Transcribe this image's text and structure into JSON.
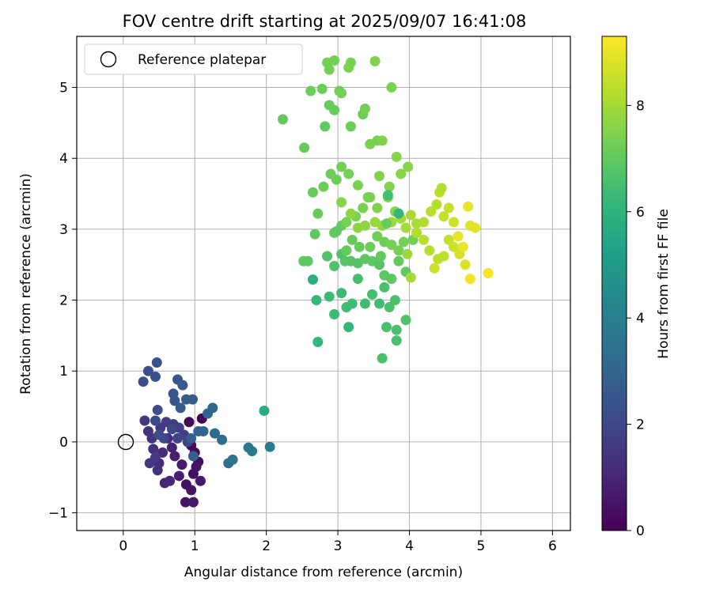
{
  "chart_data": {
    "type": "scatter",
    "title": "FOV centre drift starting at 2025/09/07 16:41:08",
    "xlabel": "Angular distance from reference (arcmin)",
    "ylabel": "Rotation from reference (arcmin)",
    "xlim": [
      -0.65,
      6.25
    ],
    "ylim": [
      -1.25,
      5.72
    ],
    "xticks": [
      0,
      1,
      2,
      3,
      4,
      5,
      6
    ],
    "yticks": [
      -1,
      0,
      1,
      2,
      3,
      4,
      5
    ],
    "grid": true,
    "legend": {
      "position": "top-left",
      "entries": [
        {
          "label": "Reference platepar",
          "marker": "open-circle",
          "x": 0,
          "y": 0
        }
      ]
    },
    "colorbar": {
      "label": "Hours from first FF file",
      "range": [
        0,
        9.3
      ],
      "ticks": [
        0,
        2,
        4,
        6,
        8
      ],
      "colormap": "viridis"
    },
    "colormap_stops": [
      "#440154",
      "#482878",
      "#3e4989",
      "#31688e",
      "#26828e",
      "#1f9e89",
      "#35b779",
      "#6ece58",
      "#b5de2b",
      "#fde725"
    ],
    "points": [
      [
        1.1,
        0.33,
        0.1
      ],
      [
        0.92,
        0.28,
        0.2
      ],
      [
        0.95,
        -0.05,
        0.2
      ],
      [
        1.0,
        -0.15,
        0.3
      ],
      [
        1.05,
        -0.28,
        0.3
      ],
      [
        0.98,
        -0.45,
        0.4
      ],
      [
        0.88,
        -0.6,
        0.4
      ],
      [
        0.95,
        -0.68,
        0.5
      ],
      [
        0.87,
        -0.85,
        0.5
      ],
      [
        0.98,
        -0.85,
        0.6
      ],
      [
        1.02,
        -0.35,
        0.5
      ],
      [
        1.08,
        -0.55,
        0.6
      ],
      [
        0.82,
        -0.32,
        0.7
      ],
      [
        0.78,
        -0.48,
        0.8
      ],
      [
        0.72,
        -0.2,
        0.8
      ],
      [
        0.68,
        -0.08,
        0.9
      ],
      [
        0.65,
        -0.55,
        1.0
      ],
      [
        0.58,
        -0.58,
        1.0
      ],
      [
        0.62,
        0.05,
        1.1
      ],
      [
        0.55,
        -0.15,
        1.1
      ],
      [
        0.5,
        -0.3,
        1.2
      ],
      [
        0.48,
        -0.4,
        1.3
      ],
      [
        0.42,
        -0.1,
        1.3
      ],
      [
        0.4,
        0.05,
        1.4
      ],
      [
        0.35,
        0.15,
        1.4
      ],
      [
        0.3,
        0.3,
        1.5
      ],
      [
        0.37,
        -0.3,
        1.5
      ],
      [
        0.45,
        -0.22,
        1.6
      ],
      [
        0.52,
        0.2,
        1.6
      ],
      [
        0.6,
        0.28,
        1.7
      ],
      [
        0.7,
        0.25,
        1.7
      ],
      [
        0.78,
        0.2,
        1.8
      ],
      [
        0.85,
        0.1,
        1.8
      ],
      [
        0.9,
        0.0,
        1.9
      ],
      [
        0.76,
        0.05,
        1.9
      ],
      [
        0.68,
        0.18,
        2.0
      ],
      [
        0.57,
        0.05,
        2.0
      ],
      [
        0.5,
        0.1,
        2.1
      ],
      [
        0.45,
        0.3,
        2.1
      ],
      [
        0.48,
        0.45,
        2.2
      ],
      [
        0.28,
        0.85,
        2.2
      ],
      [
        0.35,
        1.0,
        2.3
      ],
      [
        0.45,
        0.92,
        2.3
      ],
      [
        0.47,
        1.12,
        2.4
      ],
      [
        0.7,
        0.68,
        2.4
      ],
      [
        0.72,
        0.58,
        2.5
      ],
      [
        0.76,
        0.88,
        2.5
      ],
      [
        0.83,
        0.8,
        2.6
      ],
      [
        0.8,
        0.48,
        2.6
      ],
      [
        0.88,
        0.6,
        2.7
      ],
      [
        0.97,
        0.6,
        2.7
      ],
      [
        0.98,
        -0.2,
        2.9
      ],
      [
        0.95,
        0.05,
        2.8
      ],
      [
        1.05,
        0.15,
        2.9
      ],
      [
        1.12,
        0.15,
        3.0
      ],
      [
        1.18,
        0.4,
        3.0
      ],
      [
        1.25,
        0.48,
        3.1
      ],
      [
        1.28,
        0.12,
        3.2
      ],
      [
        1.38,
        0.03,
        3.3
      ],
      [
        1.47,
        -0.3,
        3.4
      ],
      [
        1.53,
        -0.25,
        3.5
      ],
      [
        1.75,
        -0.08,
        3.7
      ],
      [
        1.8,
        -0.13,
        3.8
      ],
      [
        2.05,
        -0.07,
        4.0
      ],
      [
        1.97,
        0.44,
        5.7
      ],
      [
        2.65,
        2.29,
        5.8
      ],
      [
        2.72,
        1.41,
        6.1
      ],
      [
        3.15,
        1.62,
        6.2
      ],
      [
        2.7,
        2.0,
        6.2
      ],
      [
        2.88,
        2.05,
        6.3
      ],
      [
        2.95,
        1.8,
        6.3
      ],
      [
        3.05,
        2.1,
        6.3
      ],
      [
        3.12,
        1.9,
        6.4
      ],
      [
        3.2,
        1.95,
        6.4
      ],
      [
        3.28,
        2.3,
        6.5
      ],
      [
        3.38,
        1.95,
        6.4
      ],
      [
        3.48,
        2.08,
        6.5
      ],
      [
        3.58,
        1.95,
        6.4
      ],
      [
        3.65,
        2.18,
        6.6
      ],
      [
        3.72,
        1.9,
        6.6
      ],
      [
        3.8,
        2.0,
        6.6
      ],
      [
        3.68,
        1.62,
        6.6
      ],
      [
        3.82,
        1.58,
        6.6
      ],
      [
        3.82,
        1.43,
        6.6
      ],
      [
        3.62,
        1.18,
        6.6
      ],
      [
        3.95,
        1.72,
        6.7
      ],
      [
        2.85,
        2.62,
        6.7
      ],
      [
        2.95,
        2.48,
        6.7
      ],
      [
        3.05,
        2.65,
        6.7
      ],
      [
        3.1,
        2.55,
        6.8
      ],
      [
        3.18,
        2.55,
        6.8
      ],
      [
        3.28,
        2.52,
        6.8
      ],
      [
        3.38,
        2.58,
        6.9
      ],
      [
        3.48,
        2.55,
        6.9
      ],
      [
        3.58,
        2.5,
        6.8
      ],
      [
        3.65,
        2.35,
        6.9
      ],
      [
        3.75,
        2.3,
        6.9
      ],
      [
        3.85,
        2.55,
        7.0
      ],
      [
        3.95,
        2.4,
        7.0
      ],
      [
        2.52,
        2.55,
        6.9
      ],
      [
        2.58,
        2.55,
        6.9
      ],
      [
        2.68,
        2.93,
        6.9
      ],
      [
        2.95,
        2.95,
        7.0
      ],
      [
        3.05,
        3.05,
        7.0
      ],
      [
        3.12,
        2.7,
        7.1
      ],
      [
        3.2,
        2.85,
        7.1
      ],
      [
        3.3,
        2.75,
        7.1
      ],
      [
        3.45,
        2.75,
        7.2
      ],
      [
        3.55,
        2.9,
        7.2
      ],
      [
        3.65,
        2.82,
        7.2
      ],
      [
        3.75,
        2.78,
        7.3
      ],
      [
        3.85,
        2.7,
        7.3
      ],
      [
        3.92,
        2.82,
        7.3
      ],
      [
        4.05,
        2.85,
        7.3
      ],
      [
        3.12,
        3.1,
        7.4
      ],
      [
        3.25,
        3.18,
        7.4
      ],
      [
        3.35,
        3.3,
        7.4
      ],
      [
        3.45,
        3.45,
        7.5
      ],
      [
        3.55,
        3.3,
        7.5
      ],
      [
        3.7,
        3.45,
        7.5
      ],
      [
        3.8,
        3.25,
        7.6
      ],
      [
        2.65,
        3.52,
        7.1
      ],
      [
        2.72,
        3.22,
        7.1
      ],
      [
        2.8,
        3.6,
        7.2
      ],
      [
        2.9,
        3.78,
        7.2
      ],
      [
        2.98,
        3.7,
        7.2
      ],
      [
        3.05,
        3.88,
        7.3
      ],
      [
        3.15,
        3.78,
        7.3
      ],
      [
        3.28,
        3.62,
        7.4
      ],
      [
        3.42,
        3.45,
        7.4
      ],
      [
        3.58,
        3.75,
        7.5
      ],
      [
        3.72,
        3.6,
        7.5
      ],
      [
        3.88,
        3.78,
        7.6
      ],
      [
        3.98,
        3.88,
        7.6
      ],
      [
        3.82,
        4.02,
        7.6
      ],
      [
        2.53,
        4.15,
        7.1
      ],
      [
        2.23,
        4.55,
        7.0
      ],
      [
        2.82,
        4.45,
        7.0
      ],
      [
        2.88,
        4.75,
        7.1
      ],
      [
        2.95,
        4.68,
        7.1
      ],
      [
        3.18,
        4.45,
        7.2
      ],
      [
        3.35,
        4.62,
        7.2
      ],
      [
        3.38,
        4.7,
        7.3
      ],
      [
        3.45,
        4.2,
        7.4
      ],
      [
        3.55,
        4.25,
        7.4
      ],
      [
        3.62,
        4.25,
        7.5
      ],
      [
        2.62,
        4.95,
        7.2
      ],
      [
        2.78,
        4.98,
        7.2
      ],
      [
        3.02,
        4.95,
        7.3
      ],
      [
        3.05,
        4.92,
        7.3
      ],
      [
        3.75,
        5.0,
        7.4
      ],
      [
        2.85,
        5.35,
        7.3
      ],
      [
        2.88,
        5.25,
        7.3
      ],
      [
        2.95,
        5.38,
        7.3
      ],
      [
        3.15,
        5.28,
        7.4
      ],
      [
        3.18,
        5.35,
        7.4
      ],
      [
        3.52,
        5.37,
        7.5
      ],
      [
        3.05,
        3.38,
        7.6
      ],
      [
        3.18,
        3.22,
        7.7
      ],
      [
        3.28,
        3.02,
        7.7
      ],
      [
        3.38,
        3.05,
        7.7
      ],
      [
        3.52,
        3.1,
        7.8
      ],
      [
        3.62,
        3.05,
        7.8
      ],
      [
        3.75,
        3.1,
        7.9
      ],
      [
        3.88,
        3.15,
        8.0
      ],
      [
        3.95,
        3.02,
        8.0
      ],
      [
        4.02,
        3.2,
        8.1
      ],
      [
        4.1,
        3.08,
        8.1
      ],
      [
        4.2,
        3.1,
        8.2
      ],
      [
        4.3,
        3.25,
        8.3
      ],
      [
        4.38,
        3.35,
        8.3
      ],
      [
        4.42,
        3.52,
        8.4
      ],
      [
        4.55,
        3.3,
        8.5
      ],
      [
        4.48,
        3.18,
        8.5
      ],
      [
        4.62,
        3.1,
        8.6
      ],
      [
        4.1,
        2.95,
        8.2
      ],
      [
        4.2,
        2.85,
        8.3
      ],
      [
        4.28,
        2.7,
        8.3
      ],
      [
        4.4,
        2.58,
        8.4
      ],
      [
        4.48,
        2.62,
        8.4
      ],
      [
        4.55,
        2.85,
        8.5
      ],
      [
        4.62,
        2.75,
        8.6
      ],
      [
        4.7,
        2.65,
        8.7
      ],
      [
        4.78,
        2.5,
        8.8
      ],
      [
        4.85,
        3.05,
        8.9
      ],
      [
        4.92,
        3.02,
        8.9
      ],
      [
        4.82,
        3.32,
        9.0
      ],
      [
        4.75,
        2.75,
        9.0
      ],
      [
        4.68,
        2.9,
        9.0
      ],
      [
        4.85,
        2.3,
        9.1
      ],
      [
        5.1,
        2.38,
        9.2
      ],
      [
        4.02,
        2.32,
        8.0
      ],
      [
        3.97,
        2.65,
        7.9
      ],
      [
        3.6,
        2.62,
        7.0
      ],
      [
        3.7,
        3.48,
        6.5
      ],
      [
        3.85,
        3.22,
        6.2
      ],
      [
        3.68,
        3.08,
        7.1
      ],
      [
        4.35,
        2.45,
        8.6
      ],
      [
        4.45,
        3.58,
        8.2
      ],
      [
        2.98,
        2.97,
        7.0
      ]
    ]
  }
}
